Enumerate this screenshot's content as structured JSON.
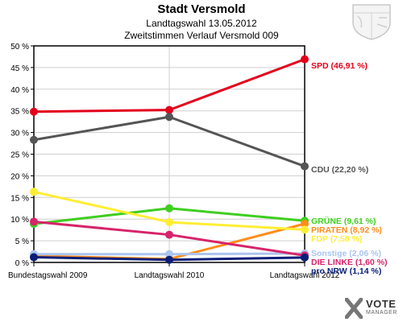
{
  "header": {
    "title": "Stadt Versmold",
    "subtitle1": "Landtagswahl 13.05.2012",
    "subtitle2": "Zweitstimmen Verlauf Versmold 009"
  },
  "logo": {
    "line1": "VOTE",
    "line2": "MANAGER"
  },
  "chart_data": {
    "type": "line",
    "title": "Stadt Versmold",
    "subtitle": "Landtagswahl 13.05.2012 / Zweitstimmen Verlauf Versmold 009",
    "categories": [
      "Bundestagswahl 2009",
      "Landtagswahl 2010",
      "Landtagswahl 2012"
    ],
    "ylim": [
      0,
      50
    ],
    "yticks": [
      "0 %",
      "5 %",
      "10 %",
      "15 %",
      "20 %",
      "25 %",
      "30 %",
      "35 %",
      "40 %",
      "45 %",
      "50 %"
    ],
    "grid": true,
    "legend": "end-labels",
    "series": [
      {
        "name": "SPD",
        "label": "SPD (46,91 %)",
        "color": "#e3001b",
        "values": [
          34.8,
          35.2,
          46.91
        ]
      },
      {
        "name": "CDU",
        "label": "CDU (22,20 %)",
        "color": "#555555",
        "values": [
          28.3,
          33.6,
          22.2
        ]
      },
      {
        "name": "GRÜNE",
        "label": "GRÜNE (9,61 %)",
        "color": "#3fce1f",
        "values": [
          8.9,
          12.5,
          9.61
        ]
      },
      {
        "name": "PIRATEN",
        "label": "PIRATEN (8,92 %)",
        "color": "#ff8c1a",
        "values": [
          1.5,
          0.8,
          8.92
        ]
      },
      {
        "name": "FDP",
        "label": "FDP (7,58 %)",
        "color": "#ffee33",
        "values": [
          16.3,
          9.3,
          7.58
        ]
      },
      {
        "name": "Sonstige",
        "label": "Sonstige (2,06 %)",
        "color": "#aac4ee",
        "values": [
          1.9,
          1.9,
          2.06
        ]
      },
      {
        "name": "DIE LINKE",
        "label": "DIE LINKE (1,60 %)",
        "color": "#d6246a",
        "values": [
          9.4,
          6.4,
          1.6
        ]
      },
      {
        "name": "pro NRW",
        "label": "pro NRW (1,14 %)",
        "color": "#0a1e78",
        "values": [
          1.2,
          0.6,
          1.14
        ]
      }
    ]
  }
}
